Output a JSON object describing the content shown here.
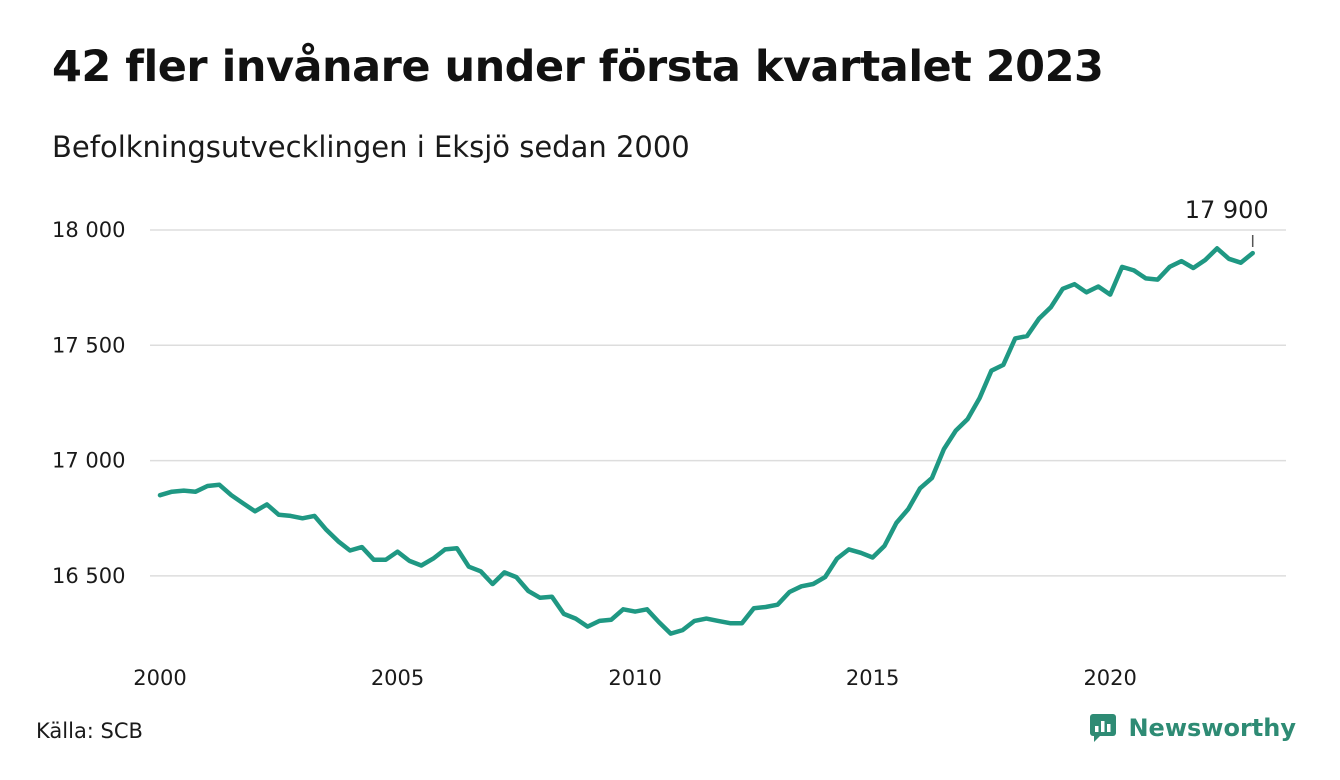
{
  "header": {
    "title": "42 fler invånare under första kvartalet 2023",
    "subtitle": "Befolkningsutvecklingen i Eksjö sedan 2000"
  },
  "footer": {
    "source": "Källa: SCB",
    "brand": "Newsworthy"
  },
  "colors": {
    "line": "#1f9883",
    "grid": "#dddddd",
    "brand": "#2e8b74"
  },
  "chart_data": {
    "type": "line",
    "title": "42 fler invånare under första kvartalet 2023",
    "subtitle": "Befolkningsutvecklingen i Eksjö sedan 2000",
    "xlabel": "",
    "ylabel": "",
    "ylim": [
      16200,
      18050
    ],
    "xlim": [
      2000,
      2023.6
    ],
    "grid": true,
    "legend": "none",
    "y_ticks": [
      {
        "value": 16500,
        "label": "16 500"
      },
      {
        "value": 17000,
        "label": "17 000"
      },
      {
        "value": 17500,
        "label": "17 500"
      },
      {
        "value": 18000,
        "label": "18 000"
      }
    ],
    "x_ticks": [
      {
        "value": 2000,
        "label": "2000"
      },
      {
        "value": 2005,
        "label": "2005"
      },
      {
        "value": 2010,
        "label": "2010"
      },
      {
        "value": 2015,
        "label": "2015"
      },
      {
        "value": 2020,
        "label": "2020"
      }
    ],
    "annotations": [
      {
        "x": 2023.0,
        "y": 17900,
        "label": "17 900"
      }
    ],
    "series": [
      {
        "x": [
          2000.0,
          2000.25,
          2000.5,
          2000.75,
          2001.0,
          2001.25,
          2001.5,
          2001.75,
          2002.0,
          2002.25,
          2002.5,
          2002.75,
          2003.0,
          2003.25,
          2003.5,
          2003.75,
          2004.0,
          2004.25,
          2004.5,
          2004.75,
          2005.0,
          2005.25,
          2005.5,
          2005.75,
          2006.0,
          2006.25,
          2006.5,
          2006.75,
          2007.0,
          2007.25,
          2007.5,
          2007.75,
          2008.0,
          2008.25,
          2008.5,
          2008.75,
          2009.0,
          2009.25,
          2009.5,
          2009.75,
          2010.0,
          2010.25,
          2010.5,
          2010.75,
          2011.0,
          2011.25,
          2011.5,
          2011.75,
          2012.0,
          2012.25,
          2012.5,
          2012.75,
          2013.0,
          2013.25,
          2013.5,
          2013.75,
          2014.0,
          2014.25,
          2014.5,
          2014.75,
          2015.0,
          2015.25,
          2015.5,
          2015.75,
          2016.0,
          2016.25,
          2016.5,
          2016.75,
          2017.0,
          2017.25,
          2017.5,
          2017.75,
          2018.0,
          2018.25,
          2018.5,
          2018.75,
          2019.0,
          2019.25,
          2019.5,
          2019.75,
          2020.0,
          2020.25,
          2020.5,
          2020.75,
          2021.0,
          2021.25,
          2021.5,
          2021.75,
          2022.0,
          2022.25,
          2022.5,
          2022.75,
          2023.0
        ],
        "values": [
          16850,
          16865,
          16870,
          16865,
          16890,
          16895,
          16850,
          16815,
          16780,
          16810,
          16765,
          16760,
          16750,
          16760,
          16700,
          16650,
          16610,
          16625,
          16570,
          16570,
          16605,
          16565,
          16545,
          16575,
          16615,
          16620,
          16540,
          16520,
          16465,
          16515,
          16495,
          16435,
          16405,
          16410,
          16335,
          16315,
          16280,
          16305,
          16310,
          16355,
          16345,
          16355,
          16300,
          16250,
          16265,
          16305,
          16315,
          16305,
          16295,
          16295,
          16360,
          16365,
          16375,
          16430,
          16455,
          16465,
          16495,
          16575,
          16615,
          16600,
          16580,
          16630,
          16730,
          16790,
          16880,
          16925,
          17050,
          17130,
          17180,
          17270,
          17390,
          17415,
          17530,
          17540,
          17615,
          17665,
          17745,
          17765,
          17730,
          17755,
          17720,
          17840,
          17825,
          17790,
          17785,
          17840,
          17865,
          17835,
          17870,
          17920,
          17875,
          17858,
          17900
        ]
      }
    ]
  }
}
